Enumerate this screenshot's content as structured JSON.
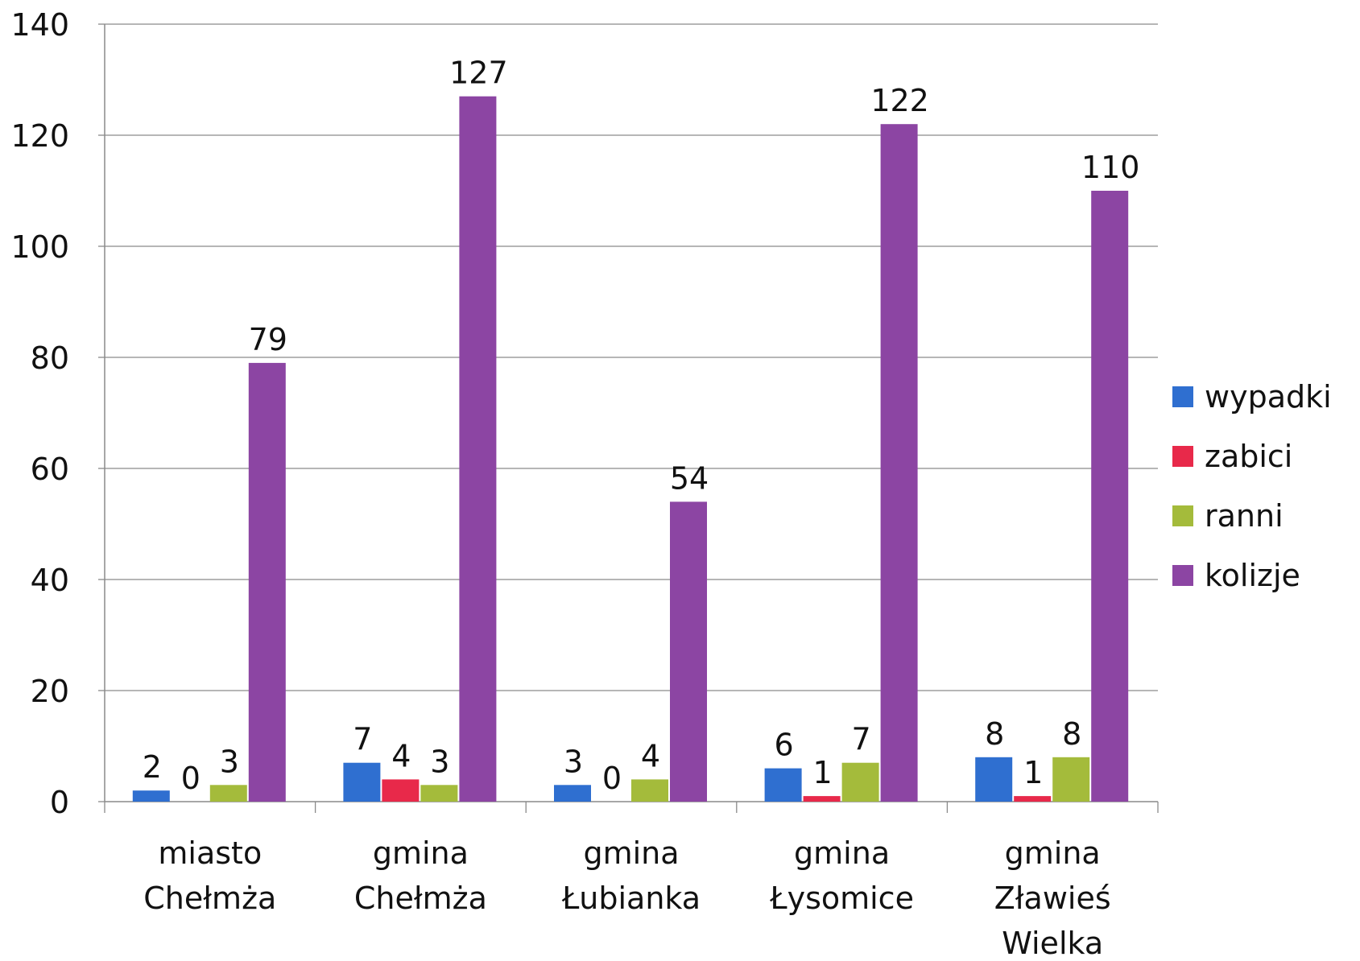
{
  "chart_data": {
    "type": "bar",
    "title": "",
    "xlabel": "",
    "ylabel": "",
    "ylim": [
      0,
      140
    ],
    "yticks": [
      0,
      20,
      40,
      60,
      80,
      100,
      120,
      140
    ],
    "grid": true,
    "legend_position": "right",
    "categories": [
      [
        "miasto",
        "Chełmża"
      ],
      [
        "gmina",
        "Chełmża"
      ],
      [
        "gmina",
        "Łubianka"
      ],
      [
        "gmina",
        "Łysomice"
      ],
      [
        "gmina",
        "Zławieś",
        "Wielka"
      ]
    ],
    "series": [
      {
        "name": "wypadki",
        "color": "#2f6fd0",
        "values": [
          2,
          7,
          3,
          6,
          8
        ]
      },
      {
        "name": "zabici",
        "color": "#e8294a",
        "values": [
          0,
          4,
          0,
          1,
          1
        ]
      },
      {
        "name": "ranni",
        "color": "#a4bb3b",
        "values": [
          3,
          3,
          4,
          7,
          8
        ]
      },
      {
        "name": "kolizje",
        "color": "#8c45a3",
        "values": [
          79,
          127,
          54,
          122,
          110
        ]
      }
    ]
  }
}
